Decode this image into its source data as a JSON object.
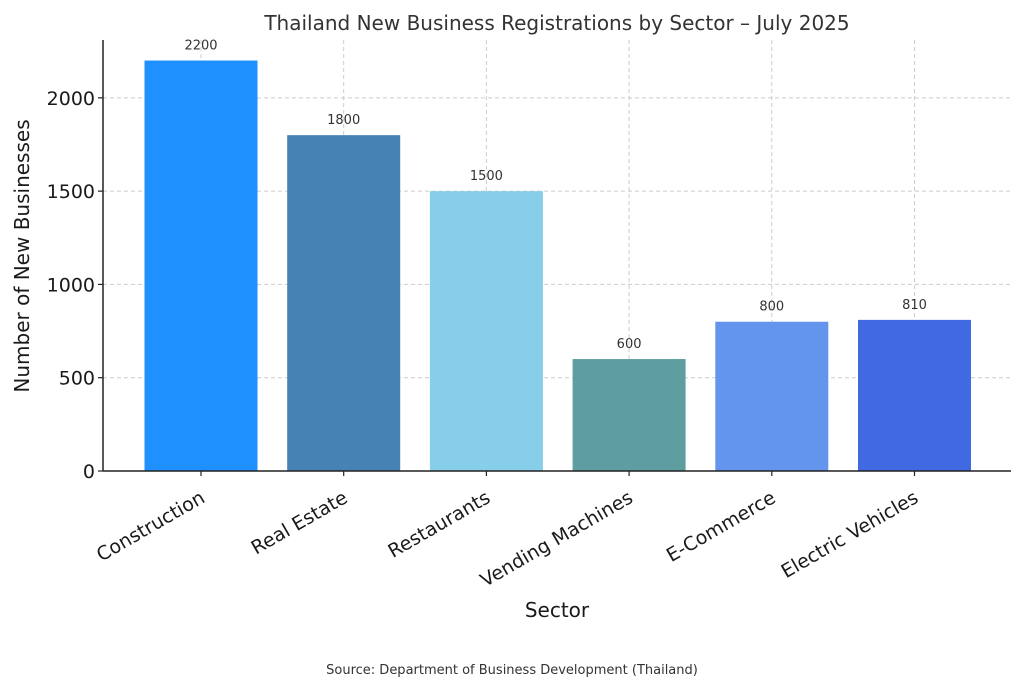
{
  "chart_data": {
    "type": "bar",
    "title": "Thailand New Business Registrations by Sector – July 2025",
    "xlabel": "Sector",
    "ylabel": "Number of New Businesses",
    "categories": [
      "Construction",
      "Real Estate",
      "Restaurants",
      "Vending Machines",
      "E-Commerce",
      "Electric Vehicles"
    ],
    "values": [
      2200,
      1800,
      1500,
      600,
      800,
      810
    ],
    "data_labels": [
      "2200",
      "1800",
      "1500",
      "600",
      "800",
      "810"
    ],
    "colors": [
      "#1E90FF",
      "#4682B4",
      "#87CEEB",
      "#5F9EA0",
      "#6495ED",
      "#4169E1"
    ],
    "ylim": [
      0,
      2310
    ],
    "yticks": [
      0,
      500,
      1000,
      1500,
      2000
    ],
    "ytick_labels": [
      "0",
      "500",
      "1000",
      "1500",
      "2000"
    ],
    "grid": true,
    "source": "Source: Department of Business Development (Thailand)"
  }
}
